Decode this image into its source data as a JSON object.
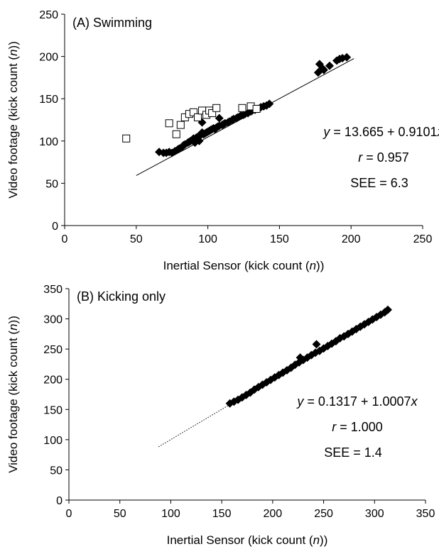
{
  "chart_data": [
    {
      "type": "scatter",
      "panel_label": "(A) Swimming",
      "xlabel": {
        "pre": "Inertial Sensor (kick count (",
        "var": "n",
        "post": "))"
      },
      "ylabel": {
        "pre": "Video footage (kick count (",
        "var": "n",
        "post": "))"
      },
      "xlim": [
        0,
        250
      ],
      "ylim": [
        0,
        250
      ],
      "xticks": [
        "0",
        "50",
        "100",
        "150",
        "200",
        "250"
      ],
      "yticks": [
        "0",
        "50",
        "100",
        "150",
        "200",
        "250"
      ],
      "grid": false,
      "stats": {
        "equation": {
          "y": "y",
          "body": " = 13.665 + 0.9101",
          "x": "x"
        },
        "r": {
          "r": "r",
          "body": " = 0.957"
        },
        "see": "SEE = 6.3"
      },
      "regression": {
        "intercept": 13.665,
        "slope": 0.9101,
        "x_range": [
          50,
          202
        ],
        "style": "solid"
      },
      "series": [
        {
          "marker": "filled-diamond",
          "points": [
            [
              66,
              87
            ],
            [
              69,
              86
            ],
            [
              71,
              86
            ],
            [
              73,
              87
            ],
            [
              75,
              86
            ],
            [
              77,
              88
            ],
            [
              79,
              90
            ],
            [
              80,
              91
            ],
            [
              82,
              93
            ],
            [
              83,
              95
            ],
            [
              84,
              96
            ],
            [
              86,
              98
            ],
            [
              87,
              99
            ],
            [
              88,
              100
            ],
            [
              89,
              101
            ],
            [
              90,
              103
            ],
            [
              91,
              101
            ],
            [
              92,
              104
            ],
            [
              93,
              105
            ],
            [
              94,
              106
            ],
            [
              95,
              107
            ],
            [
              96,
              110
            ],
            [
              97,
              108
            ],
            [
              98,
              109
            ],
            [
              100,
              111
            ],
            [
              101,
              112
            ],
            [
              102,
              113
            ],
            [
              103,
              114
            ],
            [
              104,
              115
            ],
            [
              106,
              116
            ],
            [
              107,
              117
            ],
            [
              108,
              118
            ],
            [
              110,
              119
            ],
            [
              111,
              120
            ],
            [
              112,
              121
            ],
            [
              114,
              122
            ],
            [
              115,
              123
            ],
            [
              117,
              125
            ],
            [
              118,
              126
            ],
            [
              120,
              127
            ],
            [
              121,
              128
            ],
            [
              123,
              130
            ],
            [
              125,
              131
            ],
            [
              126,
              132
            ],
            [
              128,
              133
            ],
            [
              130,
              135
            ],
            [
              131,
              136
            ],
            [
              133,
              137
            ],
            [
              135,
              138
            ],
            [
              137,
              140
            ],
            [
              139,
              141
            ],
            [
              141,
              142
            ],
            [
              143,
              144
            ],
            [
              96,
              122
            ],
            [
              99,
              110
            ],
            [
              105,
              114
            ],
            [
              108,
              127
            ],
            [
              91,
              98
            ],
            [
              94,
              100
            ],
            [
              177,
              181
            ],
            [
              178,
              191
            ],
            [
              180,
              186
            ],
            [
              181,
              184
            ],
            [
              185,
              189
            ],
            [
              190,
              195
            ],
            [
              192,
              197
            ],
            [
              194,
              198
            ],
            [
              197,
              199
            ]
          ]
        },
        {
          "marker": "open-square",
          "points": [
            [
              43,
              103
            ],
            [
              73,
              121
            ],
            [
              78,
              108
            ],
            [
              81,
              119
            ],
            [
              84,
              128
            ],
            [
              87,
              132
            ],
            [
              90,
              134
            ],
            [
              93,
              128
            ],
            [
              96,
              136
            ],
            [
              99,
              131
            ],
            [
              101,
              136
            ],
            [
              103,
              133
            ],
            [
              106,
              139
            ],
            [
              124,
              139
            ],
            [
              130,
              141
            ],
            [
              134,
              138
            ]
          ]
        }
      ]
    },
    {
      "type": "scatter",
      "panel_label": "(B) Kicking only",
      "xlabel": {
        "pre": "Inertial Sensor (kick count (",
        "var": "n",
        "post": "))"
      },
      "ylabel": {
        "pre": "Video footage (kick count (",
        "var": "n",
        "post": "))"
      },
      "xlim": [
        0,
        350
      ],
      "ylim": [
        0,
        350
      ],
      "xticks": [
        "0",
        "50",
        "100",
        "150",
        "200",
        "250",
        "300",
        "350"
      ],
      "yticks": [
        "0",
        "50",
        "100",
        "150",
        "200",
        "250",
        "300",
        "350"
      ],
      "grid": false,
      "stats": {
        "equation": {
          "y": "y",
          "body": " = 0.1317 + 1.0007",
          "x": "x"
        },
        "r": {
          "r": "r",
          "body": " = 1.000"
        },
        "see": "SEE = 1.4"
      },
      "regression": {
        "intercept": 0.1317,
        "slope": 1.0007,
        "x_range": [
          88,
          158
        ],
        "style": "dotted"
      },
      "series": [
        {
          "marker": "filled-diamond",
          "points": [
            [
              158,
              160
            ],
            [
              162,
              163
            ],
            [
              166,
              166
            ],
            [
              170,
              170
            ],
            [
              174,
              174
            ],
            [
              178,
              178
            ],
            [
              182,
              183
            ],
            [
              186,
              187
            ],
            [
              190,
              191
            ],
            [
              194,
              195
            ],
            [
              198,
              199
            ],
            [
              202,
              203
            ],
            [
              206,
              207
            ],
            [
              210,
              211
            ],
            [
              214,
              215
            ],
            [
              218,
              219
            ],
            [
              222,
              224
            ],
            [
              226,
              228
            ],
            [
              230,
              232
            ],
            [
              234,
              236
            ],
            [
              238,
              240
            ],
            [
              242,
              244
            ],
            [
              246,
              247
            ],
            [
              250,
              251
            ],
            [
              254,
              255
            ],
            [
              258,
              259
            ],
            [
              262,
              263
            ],
            [
              266,
              268
            ],
            [
              270,
              271
            ],
            [
              274,
              275
            ],
            [
              278,
              279
            ],
            [
              282,
              283
            ],
            [
              286,
              287
            ],
            [
              290,
              291
            ],
            [
              294,
              295
            ],
            [
              298,
              299
            ],
            [
              302,
              303
            ],
            [
              306,
              307
            ],
            [
              310,
              311
            ],
            [
              313,
              315
            ],
            [
              227,
              236
            ],
            [
              243,
              258
            ]
          ]
        }
      ]
    }
  ]
}
